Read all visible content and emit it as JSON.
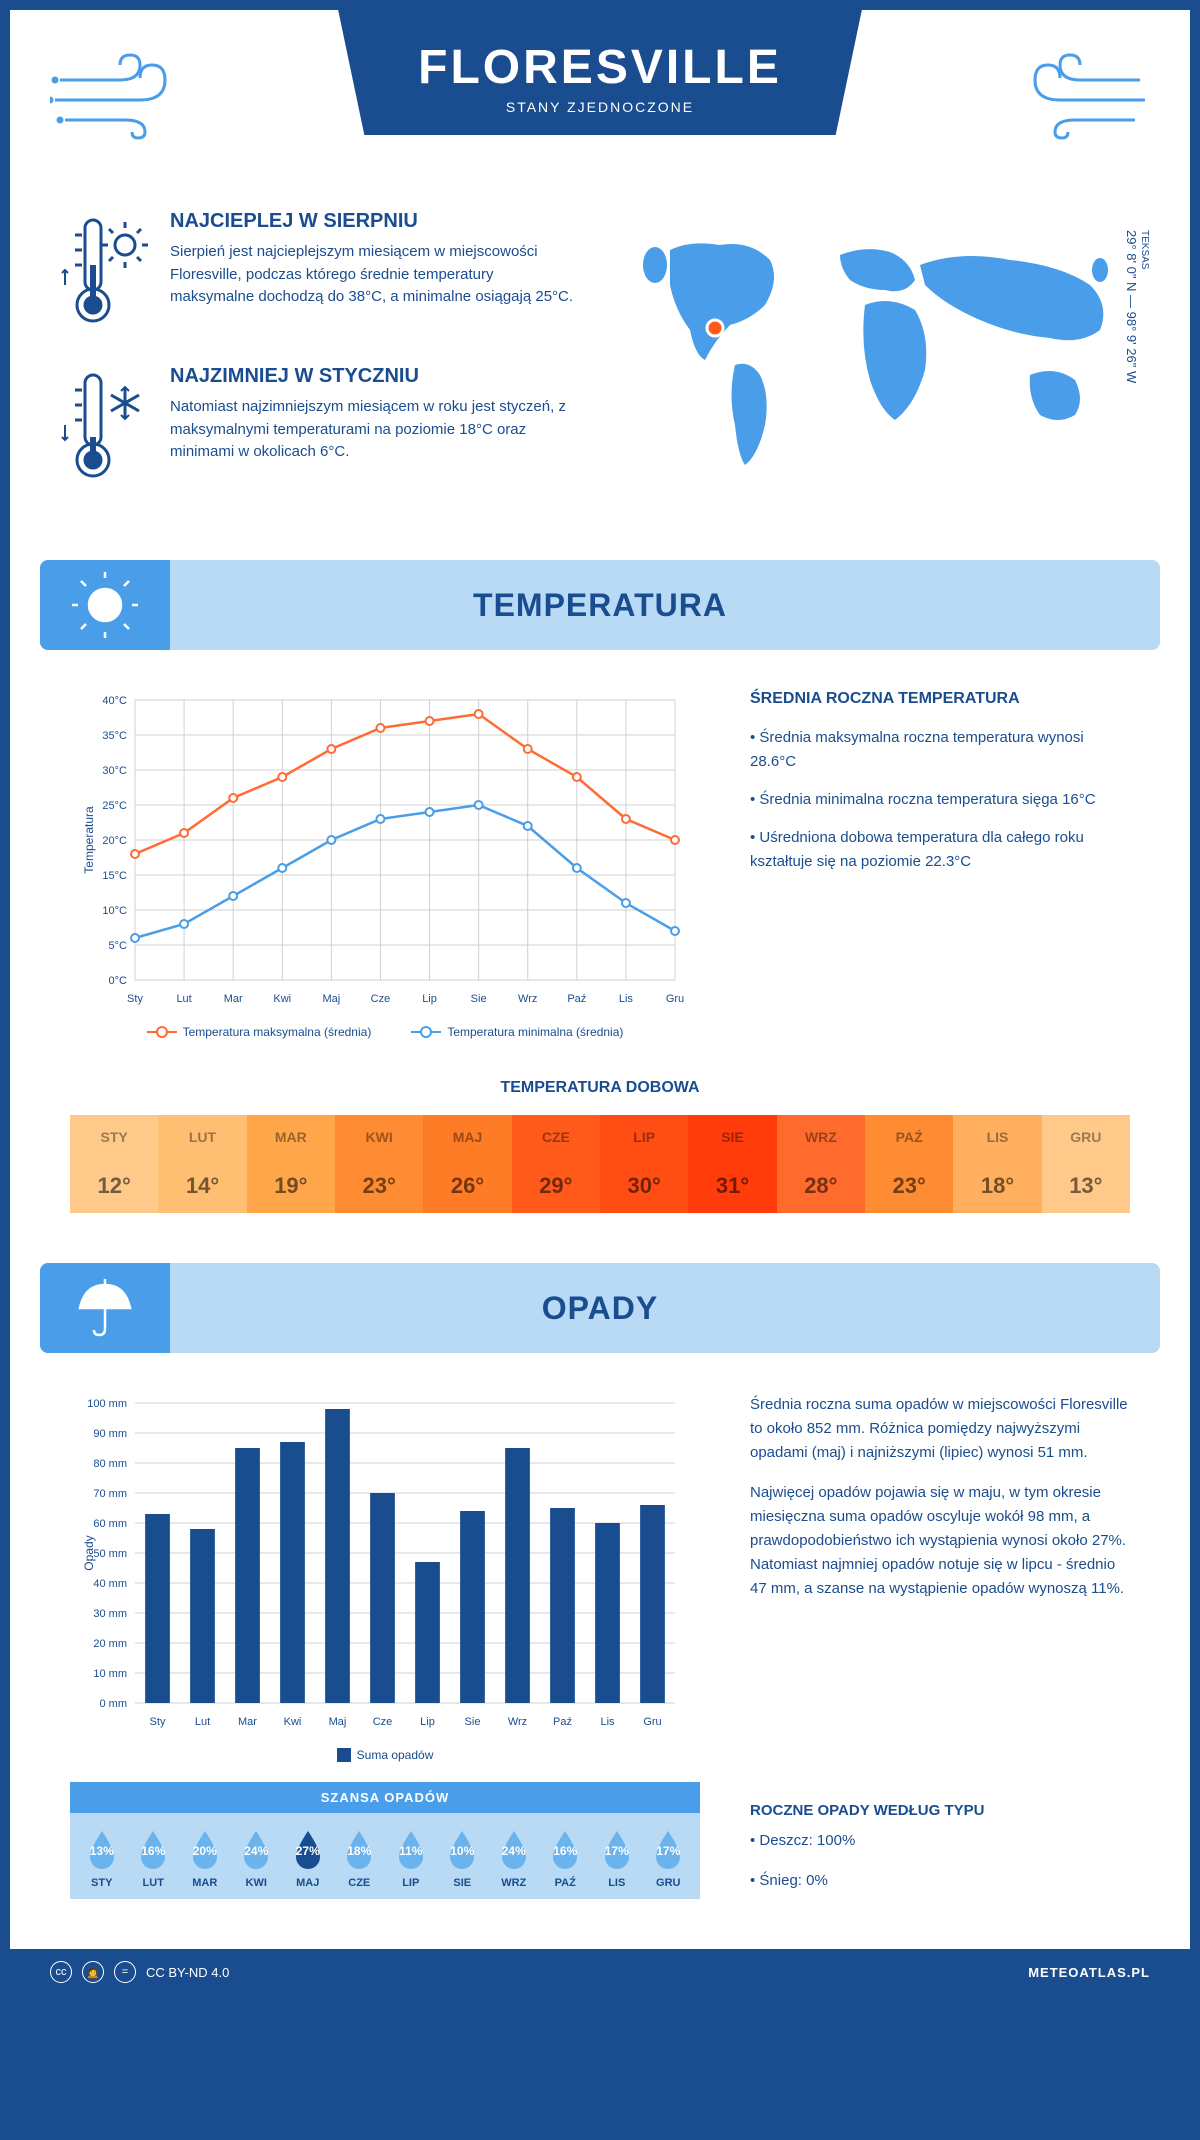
{
  "header": {
    "city": "FLORESVILLE",
    "country": "STANY ZJEDNOCZONE"
  },
  "coords": {
    "region": "TEKSAS",
    "text": "29° 8' 0\" N — 98° 9' 26\" W"
  },
  "warmest": {
    "title": "NAJCIEPLEJ W SIERPNIU",
    "text": "Sierpień jest najcieplejszym miesiącem w miejscowości Floresville, podczas którego średnie temperatury maksymalne dochodzą do 38°C, a minimalne osiągają 25°C."
  },
  "coldest": {
    "title": "NAJZIMNIEJ W STYCZNIU",
    "text": "Natomiast najzimniejszym miesiącem w roku jest styczeń, z maksymalnymi temperaturami na poziomie 18°C oraz minimami w okolicach 6°C."
  },
  "temperature": {
    "title": "TEMPERATURA",
    "chart": {
      "months": [
        "Sty",
        "Lut",
        "Mar",
        "Kwi",
        "Maj",
        "Cze",
        "Lip",
        "Sie",
        "Wrz",
        "Paź",
        "Lis",
        "Gru"
      ],
      "max_series": [
        18,
        21,
        26,
        29,
        33,
        36,
        37,
        38,
        33,
        29,
        23,
        20
      ],
      "min_series": [
        6,
        8,
        12,
        16,
        20,
        23,
        24,
        25,
        22,
        16,
        11,
        7
      ],
      "ylim": [
        0,
        40
      ],
      "ytick_step": 5,
      "y_label": "Temperatura",
      "max_color": "#ff6b35",
      "min_color": "#4a9de8",
      "grid_color": "#d8d8d8",
      "legend_max": "Temperatura maksymalna (średnia)",
      "legend_min": "Temperatura minimalna (średnia)"
    },
    "stats": {
      "title": "ŚREDNIA ROCZNA TEMPERATURA",
      "p1": "• Średnia maksymalna roczna temperatura wynosi 28.6°C",
      "p2": "• Średnia minimalna roczna temperatura sięga 16°C",
      "p3": "• Uśredniona dobowa temperatura dla całego roku kształtuje się na poziomie 22.3°C"
    },
    "daily": {
      "title": "TEMPERATURA DOBOWA",
      "months": [
        "STY",
        "LUT",
        "MAR",
        "KWI",
        "MAJ",
        "CZE",
        "LIP",
        "SIE",
        "WRZ",
        "PAŹ",
        "LIS",
        "GRU"
      ],
      "values": [
        "12°",
        "14°",
        "19°",
        "23°",
        "26°",
        "29°",
        "30°",
        "31°",
        "28°",
        "23°",
        "18°",
        "13°"
      ],
      "colors": [
        "#ffc98a",
        "#ffbf72",
        "#ffa64a",
        "#ff8c33",
        "#ff7c26",
        "#ff5a1a",
        "#ff4d14",
        "#ff3c0a",
        "#ff6b2d",
        "#ff8c33",
        "#ffaf5e",
        "#ffc98a"
      ]
    }
  },
  "precipitation": {
    "title": "OPADY",
    "chart": {
      "months": [
        "Sty",
        "Lut",
        "Mar",
        "Kwi",
        "Maj",
        "Cze",
        "Lip",
        "Sie",
        "Wrz",
        "Paź",
        "Lis",
        "Gru"
      ],
      "values": [
        63,
        58,
        85,
        87,
        98,
        70,
        47,
        64,
        85,
        65,
        60,
        66
      ],
      "ylim": [
        0,
        100
      ],
      "ytick_step": 10,
      "y_label": "Opady",
      "bar_color": "#1a4d8f",
      "grid_color": "#d8d8d8",
      "legend": "Suma opadów"
    },
    "text1": "Średnia roczna suma opadów w miejscowości Floresville to około 852 mm. Różnica pomiędzy najwyższymi opadami (maj) i najniższymi (lipiec) wynosi 51 mm.",
    "text2": "Najwięcej opadów pojawia się w maju, w tym okresie miesięczna suma opadów oscyluje wokół 98 mm, a prawdopodobieństwo ich wystąpienia wynosi około 27%. Natomiast najmniej opadów notuje się w lipcu - średnio 47 mm, a szanse na wystąpienie opadów wynoszą 11%.",
    "chance": {
      "title": "SZANSA OPADÓW",
      "months": [
        "STY",
        "LUT",
        "MAR",
        "KWI",
        "MAJ",
        "CZE",
        "LIP",
        "SIE",
        "WRZ",
        "PAŹ",
        "LIS",
        "GRU"
      ],
      "values": [
        "13%",
        "16%",
        "20%",
        "24%",
        "27%",
        "18%",
        "11%",
        "10%",
        "24%",
        "16%",
        "17%",
        "17%"
      ],
      "max_index": 4,
      "drop_light": "#6bb3ec",
      "drop_dark": "#1a4d8f"
    },
    "by_type": {
      "title": "ROCZNE OPADY WEDŁUG TYPU",
      "p1": "• Deszcz: 100%",
      "p2": "• Śnieg: 0%"
    }
  },
  "footer": {
    "license": "CC BY-ND 4.0",
    "site": "METEOATLAS.PL"
  }
}
